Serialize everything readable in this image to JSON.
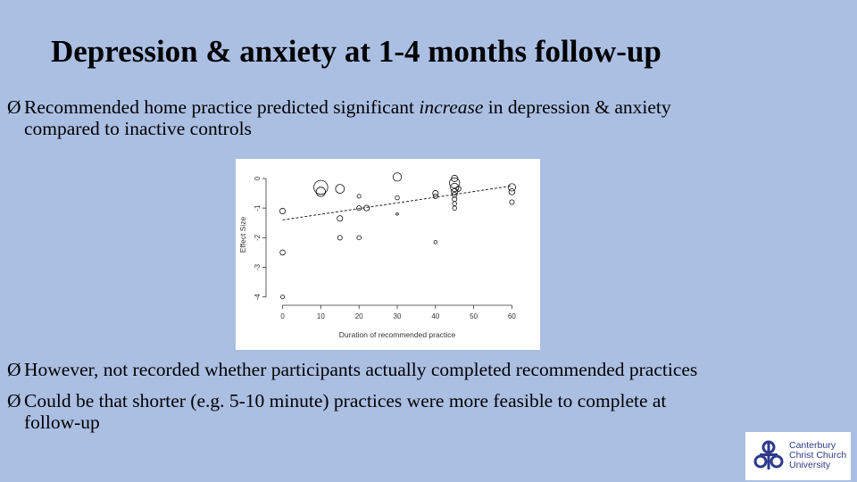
{
  "slide": {
    "title": "Depression & anxiety at 1-4 months follow-up",
    "bullet_marker": "Ø",
    "bullet1": {
      "before": "Recommended home practice predicted significant ",
      "emphasis": "increase",
      "after": " in depression & anxiety",
      "line2": "compared to inactive controls"
    },
    "bullet2": "However, not recorded whether participants actually completed recommended practices",
    "bullet3": {
      "line1": "Could be that shorter (e.g. 5-10 minute) practices were more feasible to complete at",
      "line2": "follow-up"
    }
  },
  "chart_data": {
    "type": "scatter",
    "xlabel": "Duration of recommended practice",
    "ylabel": "Effect Size",
    "x_ticks": [
      0,
      10,
      20,
      30,
      40,
      50,
      60
    ],
    "y_ticks": [
      0,
      -1,
      -2,
      -3,
      -4
    ],
    "y_tick_labels": [
      "0",
      "-1",
      "-2",
      "-3",
      "-4"
    ],
    "xlim": [
      -2,
      62
    ],
    "ylim": [
      -4.1,
      0.3
    ],
    "grid": false,
    "points": [
      {
        "x": 0,
        "y": -1.1,
        "size": 1.2
      },
      {
        "x": 0,
        "y": -2.5,
        "size": 1.1
      },
      {
        "x": 0,
        "y": -4.0,
        "size": 0.8
      },
      {
        "x": 10,
        "y": -0.3,
        "size": 3.0
      },
      {
        "x": 10,
        "y": -0.45,
        "size": 2.0
      },
      {
        "x": 15,
        "y": -0.35,
        "size": 1.9
      },
      {
        "x": 15,
        "y": -1.35,
        "size": 1.2
      },
      {
        "x": 15,
        "y": -2.0,
        "size": 1.0
      },
      {
        "x": 20,
        "y": -0.6,
        "size": 0.8
      },
      {
        "x": 20,
        "y": -1.0,
        "size": 1.0
      },
      {
        "x": 20,
        "y": -2.0,
        "size": 0.9
      },
      {
        "x": 22,
        "y": -1.0,
        "size": 1.2
      },
      {
        "x": 30,
        "y": 0.05,
        "size": 1.8
      },
      {
        "x": 30,
        "y": -0.65,
        "size": 0.9
      },
      {
        "x": 30,
        "y": -1.2,
        "size": 0.5
      },
      {
        "x": 40,
        "y": -0.5,
        "size": 1.2
      },
      {
        "x": 40,
        "y": -0.6,
        "size": 1.0
      },
      {
        "x": 40,
        "y": -2.15,
        "size": 0.7
      },
      {
        "x": 45,
        "y": 0.0,
        "size": 1.4
      },
      {
        "x": 45,
        "y": -0.15,
        "size": 2.2
      },
      {
        "x": 45,
        "y": -0.3,
        "size": 1.8
      },
      {
        "x": 45,
        "y": -0.45,
        "size": 1.4
      },
      {
        "x": 45,
        "y": -0.55,
        "size": 1.1
      },
      {
        "x": 45,
        "y": -0.7,
        "size": 1.0
      },
      {
        "x": 45,
        "y": -0.85,
        "size": 0.9
      },
      {
        "x": 45,
        "y": -1.0,
        "size": 0.9
      },
      {
        "x": 46,
        "y": -0.35,
        "size": 1.1
      },
      {
        "x": 60,
        "y": -0.3,
        "size": 1.6
      },
      {
        "x": 60,
        "y": -0.45,
        "size": 1.3
      },
      {
        "x": 60,
        "y": -0.8,
        "size": 1.0
      }
    ],
    "trendline": {
      "x": [
        0,
        60
      ],
      "y": [
        -1.4,
        -0.25
      ],
      "style": "dashed"
    }
  },
  "logo": {
    "line1": "Canterbury",
    "line2": "Christ Church",
    "line3": "University",
    "color": "#2e3a8c"
  }
}
